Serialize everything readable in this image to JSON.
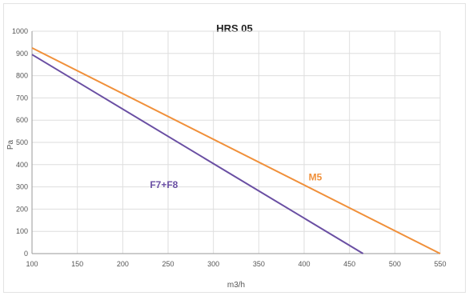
{
  "chart_data": {
    "type": "line",
    "title": "HRS 05",
    "xlabel": "m3/h",
    "ylabel": "Pa",
    "xlim": [
      100,
      550
    ],
    "ylim": [
      0,
      1000
    ],
    "x_ticks": [
      100,
      150,
      200,
      250,
      300,
      350,
      400,
      450,
      500,
      550
    ],
    "y_ticks": [
      0,
      100,
      200,
      300,
      400,
      500,
      600,
      700,
      800,
      900,
      1000
    ],
    "grid": true,
    "series": [
      {
        "name": "M5",
        "color": "#f0903a",
        "label_position": [
          405,
          330
        ],
        "points": [
          [
            100,
            925
          ],
          [
            550,
            0
          ]
        ]
      },
      {
        "name": "F7+F8",
        "color": "#6a4fa3",
        "label_position": [
          230,
          295
        ],
        "points": [
          [
            100,
            895
          ],
          [
            465,
            0
          ]
        ]
      }
    ]
  }
}
